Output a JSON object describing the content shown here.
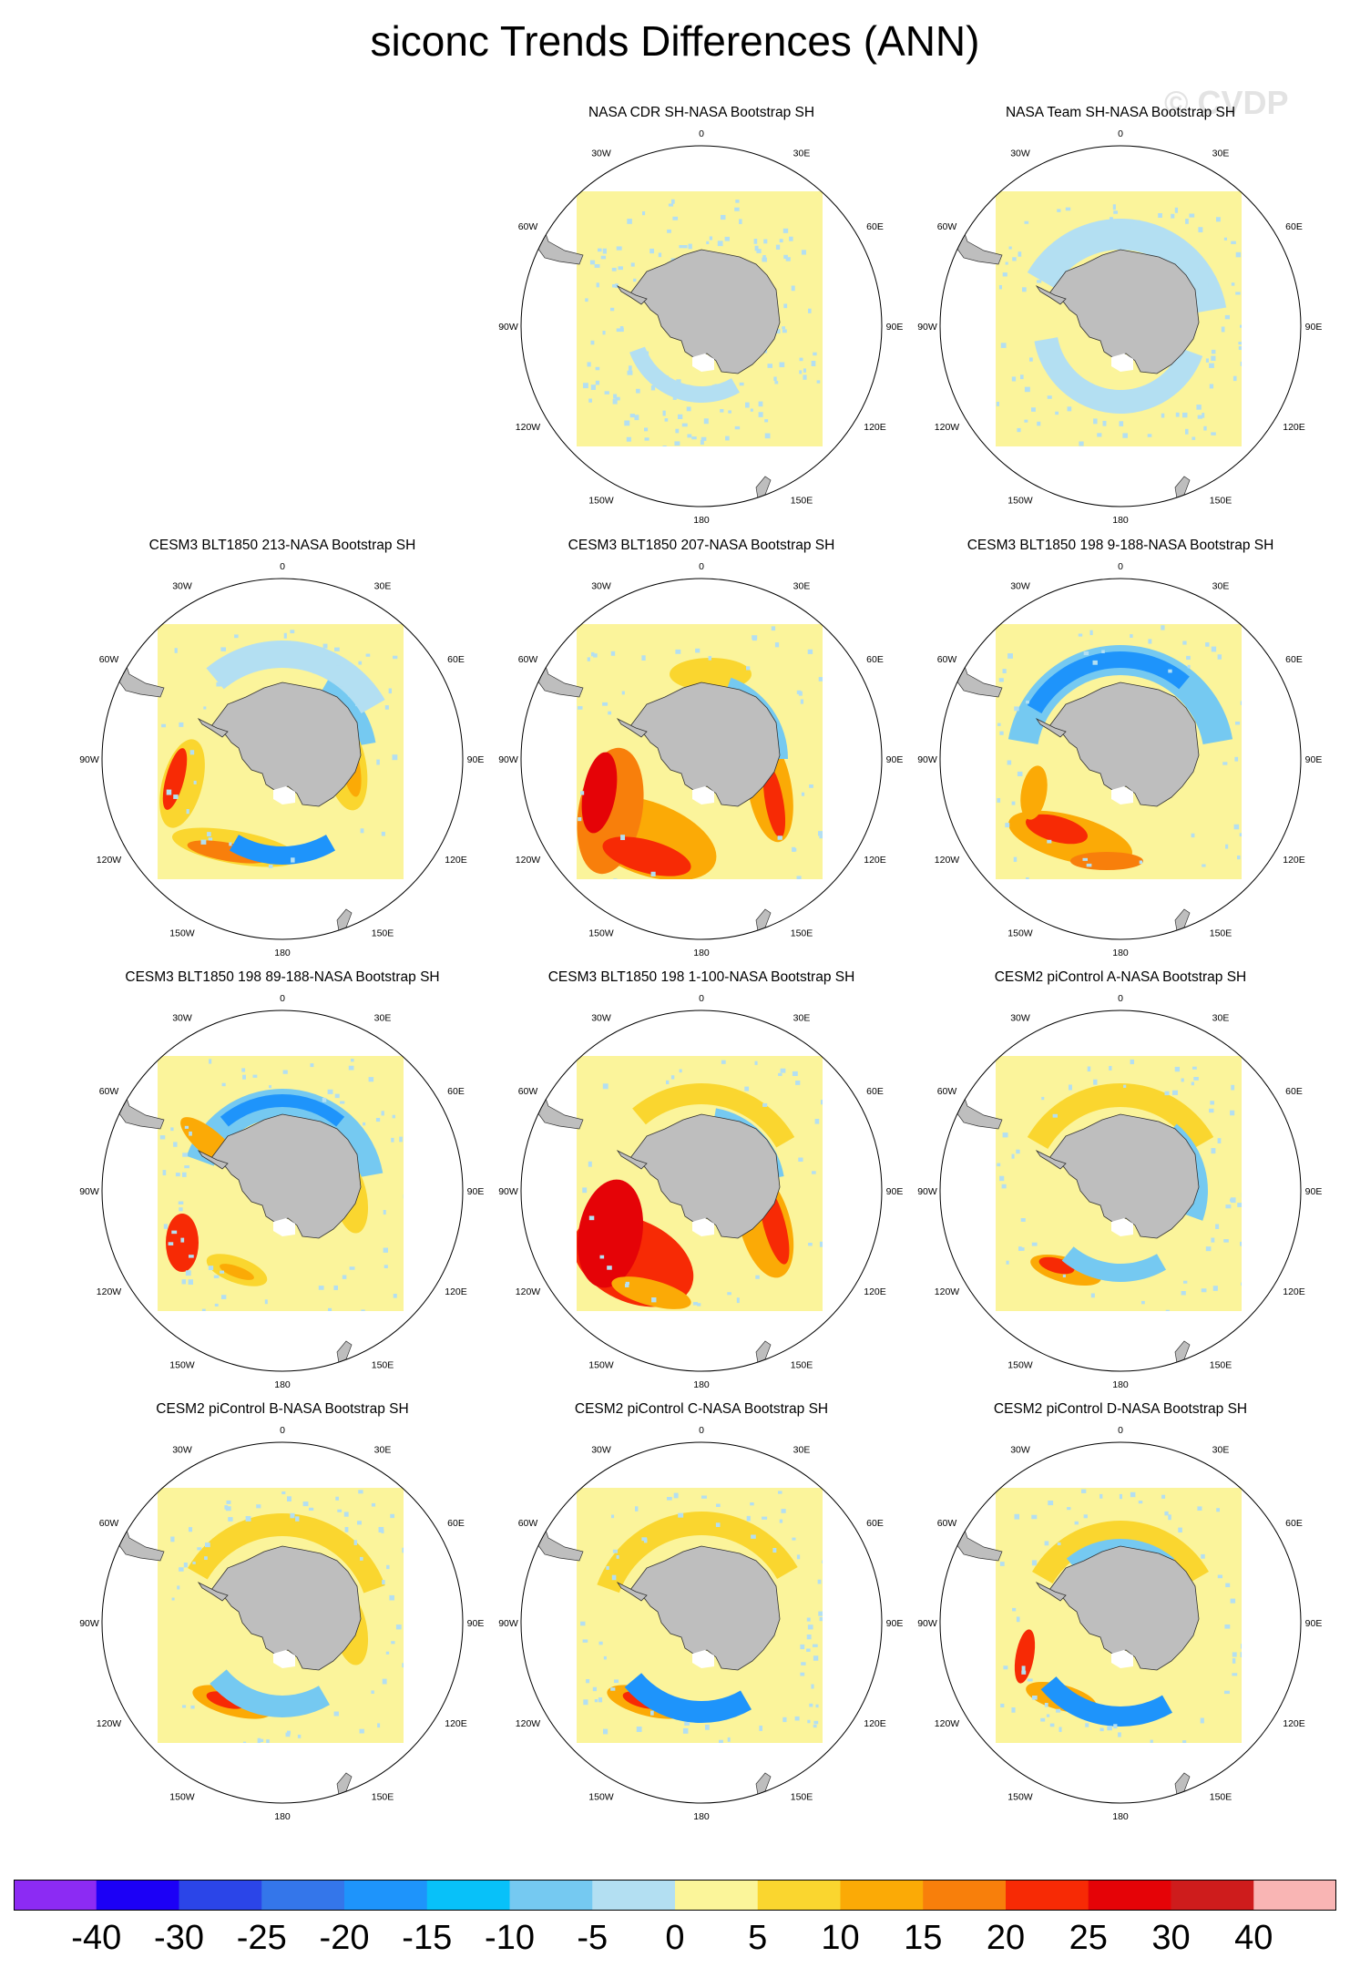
{
  "title": "siconc Trends Differences (ANN)",
  "watermark": "© CVDP",
  "panels": [
    {
      "title": "",
      "blank": true
    },
    {
      "title": "NASA CDR SH-NASA Bootstrap SH",
      "pattern": "obs1"
    },
    {
      "title": "NASA Team SH-NASA Bootstrap SH",
      "pattern": "obs2"
    },
    {
      "title": "CESM3 BLT1850 213-NASA Bootstrap SH",
      "pattern": "m1"
    },
    {
      "title": "CESM3 BLT1850 207-NASA Bootstrap SH",
      "pattern": "m2"
    },
    {
      "title": "CESM3 BLT1850 198 9-188-NASA Bootstrap SH",
      "pattern": "m3"
    },
    {
      "title": "CESM3 BLT1850 198 89-188-NASA Bootstrap SH",
      "pattern": "m4"
    },
    {
      "title": "CESM3 BLT1850 198 1-100-NASA Bootstrap SH",
      "pattern": "m5"
    },
    {
      "title": "CESM2 piControl A-NASA Bootstrap SH",
      "pattern": "m6"
    },
    {
      "title": "CESM2 piControl B-NASA Bootstrap SH",
      "pattern": "m7"
    },
    {
      "title": "CESM2 piControl C-NASA Bootstrap SH",
      "pattern": "m8"
    },
    {
      "title": "CESM2 piControl D-NASA Bootstrap SH",
      "pattern": "m9"
    }
  ],
  "longitude_labels": [
    "0",
    "30E",
    "60E",
    "90E",
    "120E",
    "150E",
    "180",
    "150W",
    "120W",
    "90W",
    "60W",
    "30W"
  ],
  "colorbar": {
    "labels": [
      "-40",
      "-30",
      "-25",
      "-20",
      "-15",
      "-10",
      "-5",
      "0",
      "5",
      "10",
      "15",
      "20",
      "25",
      "30",
      "40"
    ],
    "colors": [
      "#8c2bf3",
      "#1c00f6",
      "#2b45e8",
      "#3476ea",
      "#1e94fb",
      "#08c1f9",
      "#75c9f1",
      "#b3dff2",
      "#fbf59a",
      "#fad62f",
      "#fbaa06",
      "#f87f0b",
      "#f72a05",
      "#e50307",
      "#ce1c1c",
      "#f9b5b4"
    ]
  },
  "colors": {
    "land": "#bebebe",
    "ocean_background": "#fbf49b",
    "frame": "#000000"
  }
}
